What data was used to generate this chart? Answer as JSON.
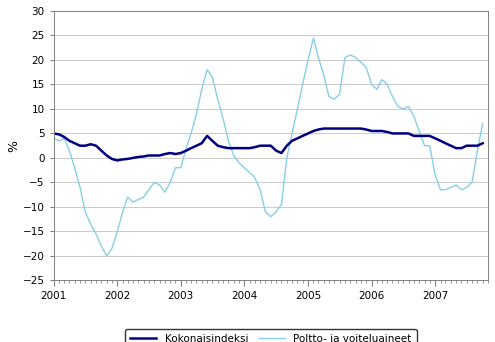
{
  "title": "",
  "ylabel": "%",
  "ylim": [
    -25,
    30
  ],
  "yticks": [
    -25,
    -20,
    -15,
    -10,
    -5,
    0,
    5,
    10,
    15,
    20,
    25,
    30
  ],
  "color_total": "#000080",
  "color_fuel": "#87CEEB",
  "legend_total": "Kokonaisindeksi",
  "legend_fuel": "Poltto- ja voiteluaineet",
  "total_index": [
    5.0,
    4.8,
    4.3,
    3.5,
    3.0,
    2.5,
    2.5,
    2.8,
    2.5,
    1.5,
    0.5,
    -0.2,
    -0.5,
    -0.3,
    -0.2,
    0.0,
    0.2,
    0.3,
    0.5,
    0.5,
    0.5,
    0.8,
    1.0,
    0.8,
    1.0,
    1.5,
    2.0,
    2.5,
    3.0,
    4.5,
    3.5,
    2.5,
    2.2,
    2.0,
    2.0,
    2.0,
    2.0,
    2.0,
    2.2,
    2.5,
    2.5,
    2.5,
    1.5,
    1.0,
    2.5,
    3.5,
    4.0,
    4.5,
    5.0,
    5.5,
    5.8,
    6.0,
    6.0,
    6.0,
    6.0,
    6.0,
    6.0,
    6.0,
    6.0,
    5.8,
    5.5,
    5.5,
    5.5,
    5.3,
    5.0,
    5.0,
    5.0,
    5.0,
    4.5,
    4.5,
    4.5,
    4.5,
    4.0,
    3.5,
    3.0,
    2.5,
    2.0,
    2.0,
    2.5,
    2.5,
    2.5,
    3.0
  ],
  "fuel_index": [
    4.0,
    3.5,
    4.0,
    1.5,
    -2.0,
    -6.0,
    -11.0,
    -13.5,
    -15.5,
    -18.0,
    -20.0,
    -18.5,
    -15.0,
    -11.0,
    -8.0,
    -9.0,
    -8.5,
    -8.0,
    -6.5,
    -5.0,
    -5.5,
    -7.0,
    -5.0,
    -2.0,
    -2.0,
    2.0,
    5.0,
    9.0,
    14.0,
    18.0,
    16.5,
    12.0,
    8.0,
    3.5,
    0.5,
    -1.0,
    -2.0,
    -3.0,
    -4.0,
    -6.5,
    -11.0,
    -12.0,
    -11.0,
    -9.5,
    0.0,
    5.0,
    10.0,
    15.0,
    20.0,
    24.5,
    20.5,
    17.0,
    12.5,
    12.0,
    13.0,
    20.5,
    21.0,
    20.5,
    19.5,
    18.5,
    15.0,
    14.0,
    16.0,
    15.0,
    12.5,
    10.5,
    10.0,
    10.5,
    8.5,
    5.5,
    2.5,
    2.5,
    -3.5,
    -6.5,
    -6.5,
    -6.0,
    -5.5,
    -6.5,
    -6.0,
    -5.0,
    1.5,
    7.0
  ]
}
